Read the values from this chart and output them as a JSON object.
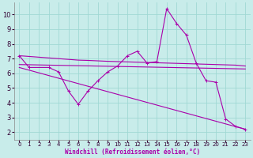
{
  "xlabel": "Windchill (Refroidissement éolien,°C)",
  "background_color": "#c8ecea",
  "grid_color": "#a0d8d4",
  "line_color": "#aa00aa",
  "x_ticks": [
    0,
    1,
    2,
    3,
    4,
    5,
    6,
    7,
    8,
    9,
    10,
    11,
    12,
    13,
    14,
    15,
    16,
    17,
    18,
    19,
    20,
    21,
    22,
    23
  ],
  "y_ticks": [
    2,
    3,
    4,
    5,
    6,
    7,
    8,
    9,
    10
  ],
  "ylim": [
    1.5,
    10.8
  ],
  "xlim": [
    -0.5,
    23.5
  ],
  "series": [
    {
      "x": [
        0,
        1,
        3,
        4,
        5,
        6,
        7,
        8,
        9,
        10,
        11,
        12,
        13,
        14,
        15,
        16,
        17,
        18,
        19,
        20,
        21,
        22,
        23
      ],
      "y": [
        7.2,
        6.4,
        6.4,
        6.1,
        4.8,
        3.9,
        4.8,
        5.5,
        6.1,
        6.5,
        7.2,
        7.5,
        6.7,
        6.8,
        10.4,
        9.4,
        8.6,
        6.7,
        5.5,
        5.4,
        2.9,
        2.4,
        2.2
      ],
      "has_markers": true
    },
    {
      "x": [
        0,
        1,
        2,
        3,
        4,
        5,
        6,
        7,
        8,
        9,
        10,
        11,
        12,
        13,
        14,
        15,
        16,
        17,
        18,
        19,
        20,
        21,
        22,
        23
      ],
      "y": [
        7.2,
        7.15,
        7.1,
        7.05,
        7.0,
        6.95,
        6.9,
        6.88,
        6.85,
        6.82,
        6.8,
        6.78,
        6.76,
        6.74,
        6.72,
        6.7,
        6.68,
        6.66,
        6.64,
        6.62,
        6.6,
        6.58,
        6.56,
        6.5
      ],
      "has_markers": false
    },
    {
      "x": [
        0,
        23
      ],
      "y": [
        6.6,
        6.3
      ],
      "has_markers": false
    },
    {
      "x": [
        0,
        23
      ],
      "y": [
        6.4,
        2.2
      ],
      "has_markers": false
    }
  ]
}
